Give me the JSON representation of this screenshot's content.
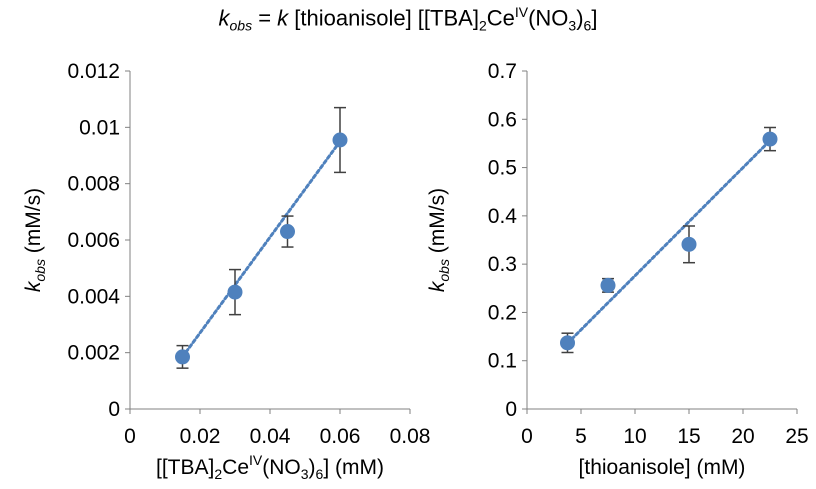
{
  "figure_title": {
    "k": "k",
    "obs": "obs",
    "equals": " = ",
    "rate_const": "k",
    "rest_a": " [thioanisole] [[TBA]",
    "sub2": "2",
    "ce": "Ce",
    "sup_iv": "IV",
    "rest_b": "(NO",
    "sub3": "3",
    "rest_c": ")",
    "sub6": "6",
    "rest_d": "]"
  },
  "chart_data": [
    {
      "type": "scatter",
      "trendline": true,
      "marker_color": "#4f81bd",
      "errorbar_color": "#404040",
      "xlabel": {
        "a": "[[TBA]",
        "sub2": "2",
        "b": "Ce",
        "sup": "IV",
        "c": "(NO",
        "sub3": "3",
        "d": ")",
        "sub6": "6",
        "e": "] (mM)"
      },
      "ylabel": {
        "k": "k",
        "sub": "obs",
        "unit": " (mM/s)"
      },
      "xlim": [
        0,
        0.08
      ],
      "ylim": [
        0,
        0.012
      ],
      "xticks": [
        "0",
        "0.02",
        "0.04",
        "0.06",
        "0.08"
      ],
      "yticks": [
        "0",
        "0.002",
        "0.004",
        "0.006",
        "0.008",
        "0.01",
        "0.012"
      ],
      "x": [
        0.015,
        0.03,
        0.045,
        0.06
      ],
      "y": [
        0.00185,
        0.00415,
        0.0063,
        0.00955
      ],
      "yerr": [
        0.0004,
        0.0008,
        0.00055,
        0.00115
      ],
      "fit": {
        "x": [
          0.015,
          0.06
        ],
        "y": [
          0.00185,
          0.0095
        ]
      }
    },
    {
      "type": "scatter",
      "trendline": true,
      "marker_color": "#4f81bd",
      "errorbar_color": "#404040",
      "xlabel": {
        "a": "[thioanisole] (mM)"
      },
      "ylabel": {
        "k": "k",
        "sub": "obs",
        "unit": " (mM/s)"
      },
      "xlim": [
        0,
        25
      ],
      "ylim": [
        0,
        0.7
      ],
      "xticks": [
        "0",
        "5",
        "10",
        "15",
        "20",
        "25"
      ],
      "yticks": [
        "0",
        "0.1",
        "0.2",
        "0.3",
        "0.4",
        "0.5",
        "0.6",
        "0.7"
      ],
      "x": [
        3.75,
        7.5,
        15,
        22.5
      ],
      "y": [
        0.137,
        0.256,
        0.341,
        0.559
      ],
      "yerr": [
        0.02,
        0.014,
        0.038,
        0.024
      ],
      "fit": {
        "x": [
          3.75,
          22.5
        ],
        "y": [
          0.136,
          0.556
        ]
      }
    }
  ]
}
